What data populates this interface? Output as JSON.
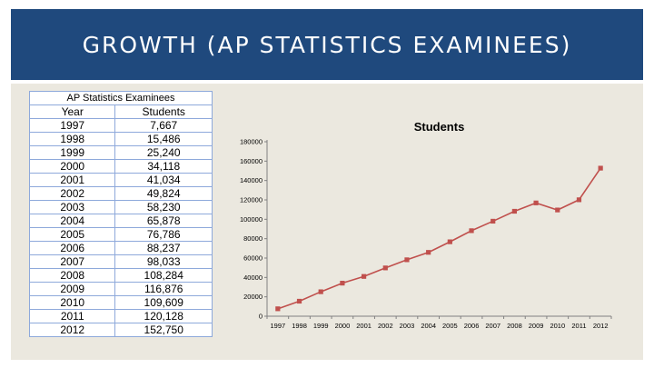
{
  "slide": {
    "title": "GROWTH (AP STATISTICS EXAMINEES)"
  },
  "table": {
    "caption": "AP Statistics Examinees",
    "headers": [
      "Year",
      "Students"
    ],
    "rows": [
      [
        "1997",
        "7,667"
      ],
      [
        "1998",
        "15,486"
      ],
      [
        "1999",
        "25,240"
      ],
      [
        "2000",
        "34,118"
      ],
      [
        "2001",
        "41,034"
      ],
      [
        "2002",
        "49,824"
      ],
      [
        "2003",
        "58,230"
      ],
      [
        "2004",
        "65,878"
      ],
      [
        "2005",
        "76,786"
      ],
      [
        "2006",
        "88,237"
      ],
      [
        "2007",
        "98,033"
      ],
      [
        "2008",
        "108,284"
      ],
      [
        "2009",
        "116,876"
      ],
      [
        "2010",
        "109,609"
      ],
      [
        "2011",
        "120,128"
      ],
      [
        "2012",
        "152,750"
      ]
    ]
  },
  "chart_data": {
    "type": "line",
    "title": "Students",
    "xlabel": "",
    "ylabel": "",
    "categories": [
      "1997",
      "1998",
      "1999",
      "2000",
      "2001",
      "2002",
      "2003",
      "2004",
      "2005",
      "2006",
      "2007",
      "2008",
      "2009",
      "2010",
      "2011",
      "2012"
    ],
    "series": [
      {
        "name": "Students",
        "values": [
          7667,
          15486,
          25240,
          34118,
          41034,
          49824,
          58230,
          65878,
          76786,
          88237,
          98033,
          108284,
          116876,
          109609,
          120128,
          152750
        ]
      }
    ],
    "ylim": [
      0,
      180000
    ],
    "ytick_step": 20000,
    "grid": false,
    "legend": "none",
    "colors": {
      "series": "#c0504d",
      "axis": "#808080"
    }
  }
}
